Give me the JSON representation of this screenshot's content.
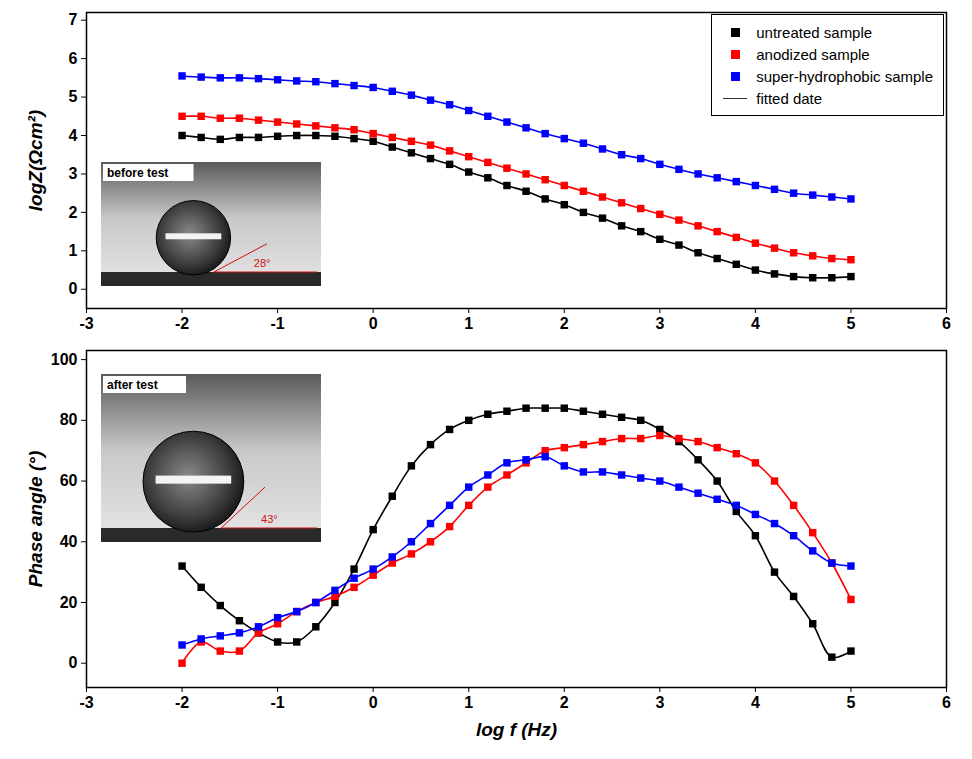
{
  "chart_data": [
    {
      "type": "line",
      "x_label": null,
      "y_label": "logZ(Ωcm²)",
      "x": [
        -2,
        -1.8,
        -1.6,
        -1.4,
        -1.2,
        -1,
        -0.8,
        -0.6,
        -0.4,
        -0.2,
        0,
        0.2,
        0.4,
        0.6,
        0.8,
        1,
        1.2,
        1.4,
        1.6,
        1.8,
        2,
        2.2,
        2.4,
        2.6,
        2.8,
        3,
        3.2,
        3.4,
        3.6,
        3.8,
        4,
        4.2,
        4.4,
        4.6,
        4.8,
        5
      ],
      "xlim": [
        -3,
        6
      ],
      "xticks": [
        -3,
        -2,
        -1,
        0,
        1,
        2,
        3,
        4,
        5,
        6
      ],
      "ylim": [
        -0.5,
        7.2
      ],
      "yticks": [
        0,
        1,
        2,
        3,
        4,
        5,
        6,
        7
      ],
      "legend": "top-right",
      "series": [
        {
          "name": "untreated sample",
          "color": "#000000",
          "marker": "square",
          "line_style": "solid",
          "values": [
            4.0,
            3.95,
            3.9,
            3.95,
            3.95,
            3.98,
            4.0,
            4.0,
            3.98,
            3.92,
            3.85,
            3.7,
            3.55,
            3.4,
            3.25,
            3.05,
            2.9,
            2.7,
            2.55,
            2.35,
            2.2,
            2.0,
            1.85,
            1.65,
            1.5,
            1.3,
            1.15,
            0.95,
            0.8,
            0.65,
            0.5,
            0.4,
            0.33,
            0.3,
            0.3,
            0.33
          ]
        },
        {
          "name": "anodized sample",
          "color": "#ff0000",
          "marker": "square",
          "line_style": "solid",
          "values": [
            4.5,
            4.5,
            4.45,
            4.45,
            4.4,
            4.35,
            4.3,
            4.25,
            4.2,
            4.15,
            4.05,
            3.95,
            3.85,
            3.75,
            3.6,
            3.45,
            3.3,
            3.15,
            3.0,
            2.85,
            2.7,
            2.55,
            2.4,
            2.25,
            2.1,
            1.95,
            1.8,
            1.65,
            1.5,
            1.35,
            1.2,
            1.07,
            0.95,
            0.87,
            0.8,
            0.77
          ]
        },
        {
          "name": "super-hydrophobic sample",
          "color": "#0000ff",
          "marker": "square",
          "line_style": "solid",
          "values": [
            5.55,
            5.52,
            5.5,
            5.5,
            5.48,
            5.45,
            5.42,
            5.4,
            5.35,
            5.3,
            5.25,
            5.15,
            5.05,
            4.92,
            4.8,
            4.65,
            4.5,
            4.35,
            4.2,
            4.05,
            3.92,
            3.8,
            3.65,
            3.5,
            3.4,
            3.25,
            3.12,
            3.0,
            2.9,
            2.8,
            2.7,
            2.6,
            2.5,
            2.45,
            2.4,
            2.35
          ]
        }
      ],
      "fit_line": {
        "name": "fitted date",
        "color": "#333333",
        "line_style": "solid"
      },
      "inset": {
        "title": "before test",
        "contact_angle": {
          "value": 28,
          "label": "28°"
        }
      }
    },
    {
      "type": "line",
      "x_label": "log f (Hz)",
      "y_label": "Phase angle (°)",
      "x": [
        -2,
        -1.8,
        -1.6,
        -1.4,
        -1.2,
        -1,
        -0.8,
        -0.6,
        -0.4,
        -0.2,
        0,
        0.2,
        0.4,
        0.6,
        0.8,
        1,
        1.2,
        1.4,
        1.6,
        1.8,
        2,
        2.2,
        2.4,
        2.6,
        2.8,
        3,
        3.2,
        3.4,
        3.6,
        3.8,
        4,
        4.2,
        4.4,
        4.6,
        4.8,
        5
      ],
      "xlim": [
        -3,
        6
      ],
      "xticks": [
        -3,
        -2,
        -1,
        0,
        1,
        2,
        3,
        4,
        5,
        6
      ],
      "ylim": [
        -8,
        103
      ],
      "yticks": [
        0,
        20,
        40,
        60,
        80,
        100
      ],
      "series": [
        {
          "name": "untreated sample",
          "color": "#000000",
          "marker": "square",
          "line_style": "solid",
          "values": [
            32,
            25,
            19,
            14,
            10,
            7,
            7,
            12,
            20,
            31,
            44,
            55,
            65,
            72,
            77,
            80,
            82,
            83,
            84,
            84,
            84,
            83,
            82,
            81,
            80,
            77,
            73,
            67,
            60,
            50,
            42,
            30,
            22,
            13,
            2,
            4
          ]
        },
        {
          "name": "anodized sample",
          "color": "#ff0000",
          "marker": "square",
          "line_style": "solid",
          "values": [
            0,
            7,
            4,
            4,
            10,
            13,
            17,
            20,
            22,
            25,
            29,
            33,
            36,
            40,
            45,
            52,
            58,
            62,
            66,
            70,
            71,
            72,
            73,
            74,
            74,
            75,
            74,
            73,
            71,
            69,
            66,
            60,
            52,
            43,
            33,
            21
          ]
        },
        {
          "name": "super-hydrophobic sample",
          "color": "#0000ff",
          "marker": "square",
          "line_style": "solid",
          "values": [
            6,
            8,
            9,
            10,
            12,
            15,
            17,
            20,
            24,
            28,
            31,
            35,
            40,
            46,
            52,
            58,
            62,
            66,
            67,
            68,
            65,
            63,
            63,
            62,
            61,
            60,
            58,
            56,
            54,
            52,
            49,
            46,
            42,
            37,
            33,
            32
          ]
        }
      ],
      "inset": {
        "title": "after test",
        "contact_angle": {
          "value": 43,
          "label": "43°"
        }
      }
    }
  ]
}
